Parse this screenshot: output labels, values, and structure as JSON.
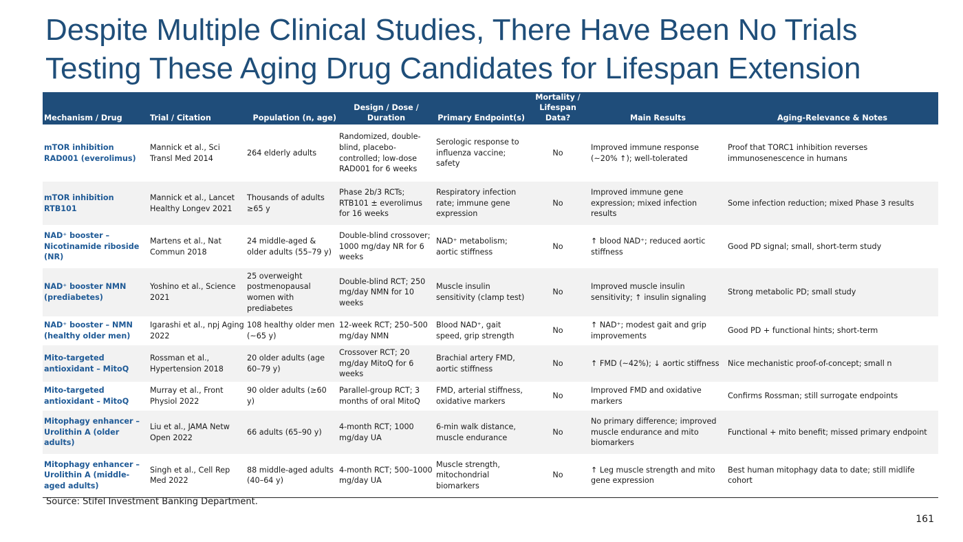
{
  "title": "Despite Multiple Clinical Studies, There Have Been No Trials Testing These Aging Drug Candidates for Lifespan Extension",
  "table": {
    "headers": {
      "mechanism": "Mechanism / Drug",
      "trial": "Trial / Citation",
      "population": "Population (n, age)",
      "design": "Design / Dose / Duration",
      "endpoint": "Primary Endpoint(s)",
      "mortality": "Mortality / Lifespan Data?",
      "results": "Main Results",
      "notes": "Aging-Relevance & Notes"
    },
    "rows": [
      {
        "mechanism": "mTOR inhibition RAD001 (everolimus)",
        "trial": "Mannick et al., Sci Transl Med 2014",
        "population": "264 elderly adults",
        "design": "Randomized, double-blind, placebo-controlled; low-dose RAD001 for 6 weeks",
        "endpoint": "Serologic response to influenza vaccine; safety",
        "mortality": "No",
        "results": "Improved immune response (~20% ↑); well-tolerated",
        "notes": "Proof that TORC1 inhibition reverses immunosenescence in humans"
      },
      {
        "mechanism": "mTOR inhibition RTB101",
        "trial": "Mannick et al., Lancet Healthy Longev 2021",
        "population": "Thousands of adults ≥65 y",
        "design": "Phase 2b/3 RCTs; RTB101 ± everolimus for 16 weeks",
        "endpoint": "Respiratory infection rate; immune gene expression",
        "mortality": "No",
        "results": "Improved immune gene expression; mixed infection results",
        "notes": "Some infection reduction; mixed Phase 3 results"
      },
      {
        "mechanism": "NAD⁺ booster – Nicotinamide riboside (NR)",
        "trial": "Martens et al., Nat Commun 2018",
        "population": "24 middle-aged & older adults (55–79 y)",
        "design": "Double-blind crossover; 1000 mg/day NR for 6 weeks",
        "endpoint": "NAD⁺ metabolism; aortic stiffness",
        "mortality": "No",
        "results": "↑ blood NAD⁺; reduced aortic stiffness",
        "notes": "Good PD signal; small, short-term study"
      },
      {
        "mechanism": "NAD⁺ booster NMN (prediabetes)",
        "trial": "Yoshino et al., Science 2021",
        "population": "25 overweight postmenopausal women with prediabetes",
        "design": "Double-blind RCT; 250 mg/day NMN for 10 weeks",
        "endpoint": "Muscle insulin sensitivity (clamp test)",
        "mortality": "No",
        "results": "Improved muscle insulin sensitivity; ↑ insulin signaling",
        "notes": "Strong metabolic PD; small study"
      },
      {
        "mechanism": "NAD⁺ booster – NMN (healthy older men)",
        "trial": "Igarashi et al., npj Aging 2022",
        "population": "108 healthy older men (~65 y)",
        "design": "12-week RCT; 250–500 mg/day NMN",
        "endpoint": "Blood NAD⁺, gait speed, grip strength",
        "mortality": "No",
        "results": "↑ NAD⁺; modest gait and grip improvements",
        "notes": "Good PD + functional hints; short-term"
      },
      {
        "mechanism": "Mito-targeted antioxidant – MitoQ",
        "trial": "Rossman et al., Hypertension 2018",
        "population": "20 older adults (age 60–79 y)",
        "design": "Crossover RCT; 20 mg/day MitoQ for 6 weeks",
        "endpoint": "Brachial artery FMD, aortic stiffness",
        "mortality": "No",
        "results": "↑ FMD (~42%); ↓ aortic stiffness",
        "notes": "Nice mechanistic proof-of-concept; small n"
      },
      {
        "mechanism": "Mito-targeted antioxidant – MitoQ",
        "trial": "Murray et al., Front Physiol 2022",
        "population": "90 older adults (≥60 y)",
        "design": "Parallel-group RCT; 3 months of oral MitoQ",
        "endpoint": "FMD, arterial stiffness, oxidative markers",
        "mortality": "No",
        "results": "Improved FMD and oxidative markers",
        "notes": "Confirms Rossman; still surrogate endpoints"
      },
      {
        "mechanism": "Mitophagy enhancer – Urolithin A (older adults)",
        "trial": "Liu et al., JAMA Netw Open 2022",
        "population": "66 adults (65–90 y)",
        "design": "4-month RCT; 1000 mg/day UA",
        "endpoint": "6-min walk distance, muscle endurance",
        "mortality": "No",
        "results": "No primary difference; improved muscle endurance and mito biomarkers",
        "notes": "Functional + mito benefit; missed primary endpoint"
      },
      {
        "mechanism": "Mitophagy enhancer – Urolithin A (middle-aged adults)",
        "trial": "Singh et al., Cell Rep Med 2022",
        "population": "88 middle-aged adults (40–64 y)",
        "design": "4-month RCT; 500–1000 mg/day UA",
        "endpoint": "Muscle strength, mitochondrial biomarkers",
        "mortality": "No",
        "results": "↑ Leg muscle strength and mito gene expression",
        "notes": "Best human mitophagy data to date; still midlife cohort"
      }
    ]
  },
  "source": "Source: Stifel Investment Banking Department.",
  "page_number": "161",
  "colors": {
    "title": "#1f4e79",
    "header_bg": "#1f4d7a",
    "mechanism_text": "#1f5a96",
    "alt_row": "#f2f2f2"
  }
}
